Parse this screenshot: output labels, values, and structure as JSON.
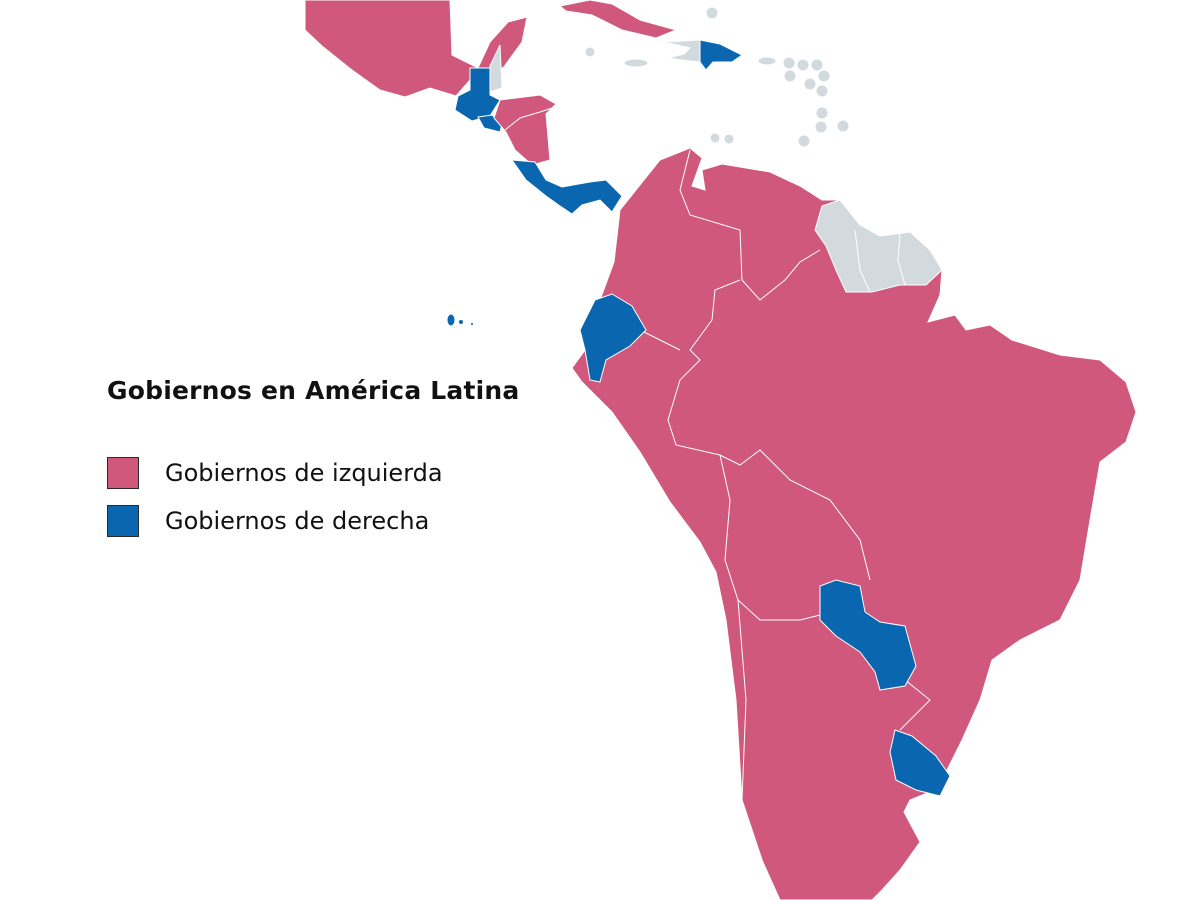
{
  "legend": {
    "title": "Gobiernos en América Latina",
    "items": [
      {
        "label": "Gobiernos de izquierda",
        "color": "#cf587c"
      },
      {
        "label": "Gobiernos de derecha",
        "color": "#0b66b0"
      }
    ]
  },
  "colors": {
    "left_government": "#cf587c",
    "right_government": "#0b66b0",
    "no_data": "#d3dadd",
    "background": "#ffffff"
  }
}
